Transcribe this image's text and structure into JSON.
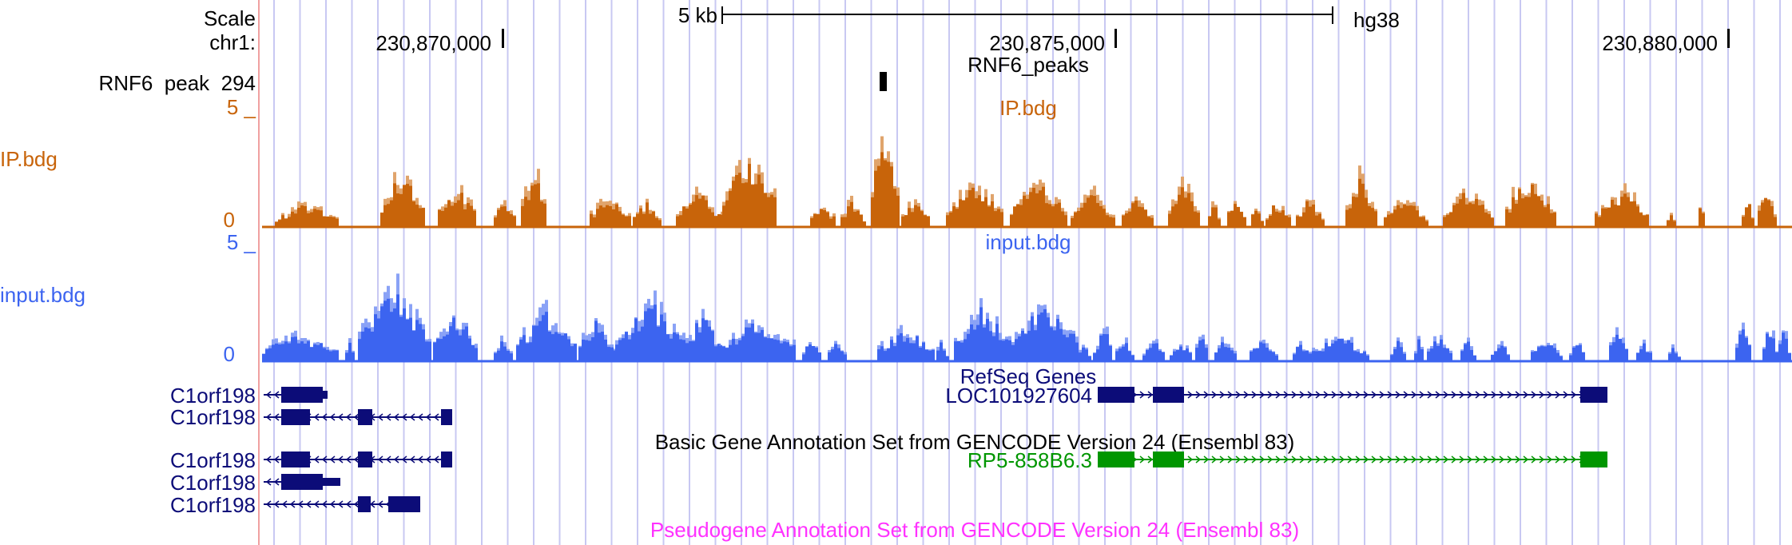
{
  "header": {
    "scale_label": "Scale",
    "chrom_label": "chr1:",
    "scale_bar_label": "5 kb",
    "assembly": "hg38",
    "positions": [
      "230,870,000",
      "230,875,000",
      "230,880,000"
    ]
  },
  "peaks_track": {
    "title": "RNF6_peaks",
    "item_label": "RNF6_peak_294"
  },
  "ip_track": {
    "name": "IP.bdg",
    "center_label": "IP.bdg",
    "max_label": "5 _",
    "min_label": "0",
    "color": "#c8640a",
    "light_color": "#e0a46c"
  },
  "input_track": {
    "name": "input.bdg",
    "center_label": "input.bdg",
    "max_label": "5 _",
    "min_label": "0",
    "color": "#3c64f0",
    "light_color": "#8aa2f6"
  },
  "refseq": {
    "title": "RefSeq Genes",
    "genes": [
      "C1orf198",
      "C1orf198",
      "LOC101927604"
    ],
    "color": "#0c0c78"
  },
  "gencode_basic": {
    "title": "Basic Gene Annotation Set from GENCODE Version 24 (Ensembl 83)",
    "genes": [
      "C1orf198",
      "C1orf198",
      "C1orf198",
      "RP5-858B6.3"
    ],
    "color_coding": "#0c0c78",
    "color_noncoding": "#009600"
  },
  "gencode_pseudo": {
    "title": "Pseudogene Annotation Set from GENCODE Version 24 (Ensembl 83)",
    "color": "#ff32ff"
  }
}
